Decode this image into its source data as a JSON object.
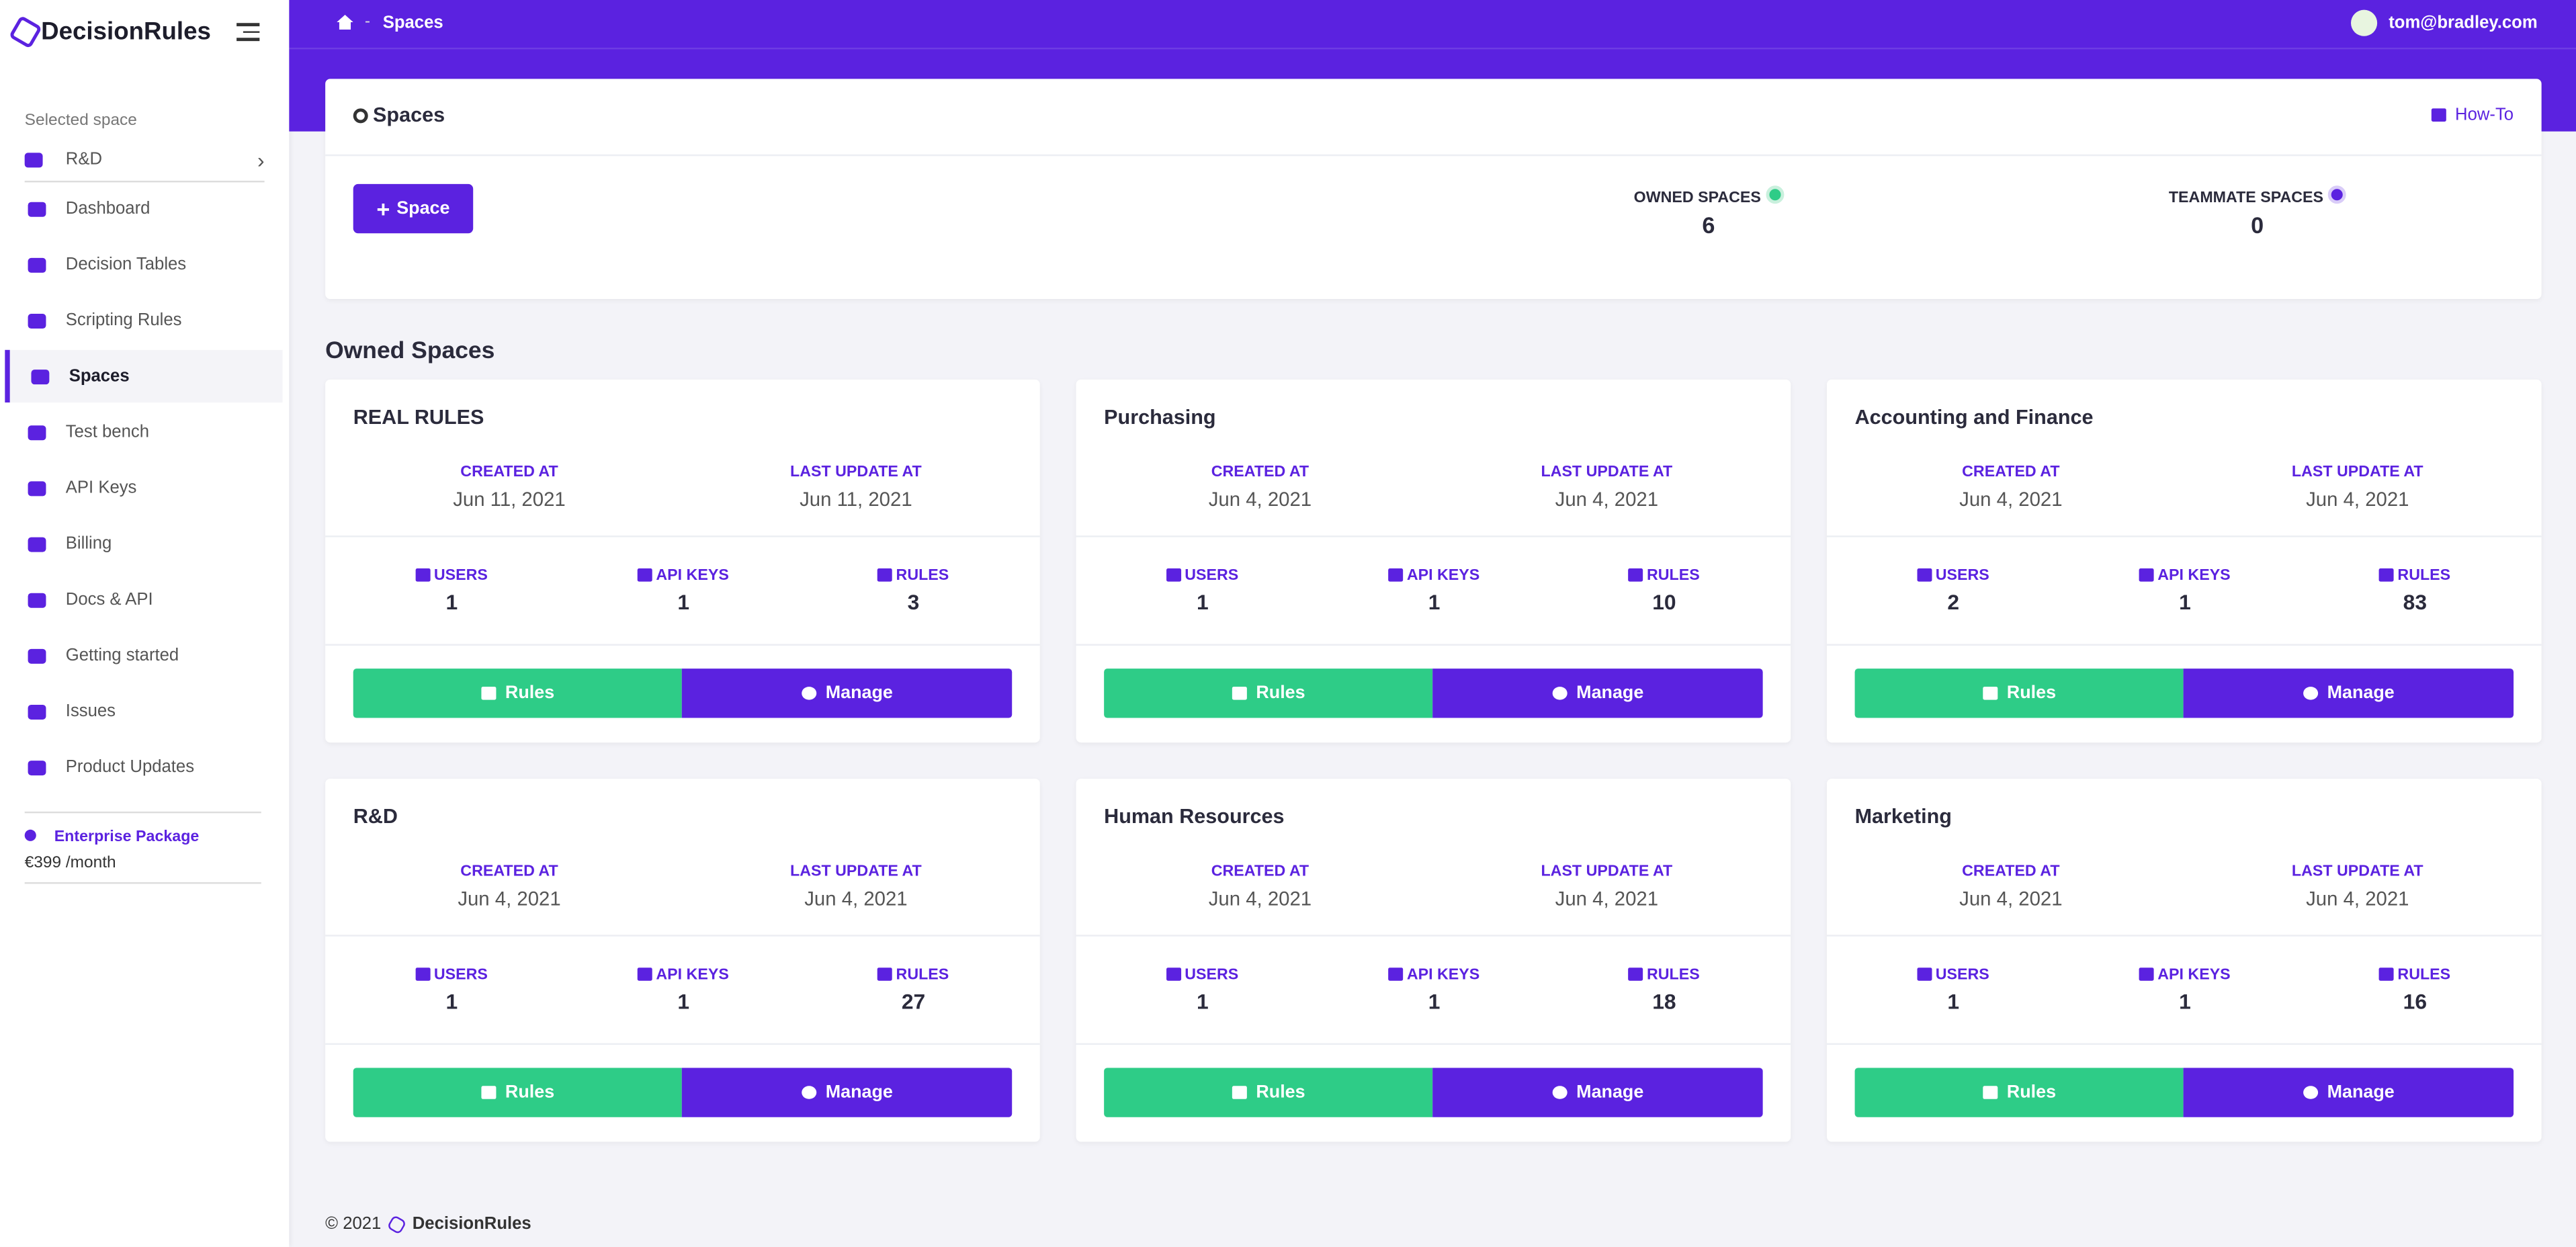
{
  "sidebar": {
    "brand": "DecisionRules",
    "selected_space_label": "Selected space",
    "selected_space": "R&D",
    "menu": [
      {
        "label": "Dashboard",
        "active": false
      },
      {
        "label": "Decision Tables",
        "active": false
      },
      {
        "label": "Scripting Rules",
        "active": false
      },
      {
        "label": "Spaces",
        "active": true
      },
      {
        "label": "Test bench",
        "active": false
      },
      {
        "label": "API Keys",
        "active": false
      },
      {
        "label": "Billing",
        "active": false
      },
      {
        "label": "Docs & API",
        "active": false
      },
      {
        "label": "Getting started",
        "active": false
      },
      {
        "label": "Issues",
        "active": false
      },
      {
        "label": "Product Updates",
        "active": false
      }
    ],
    "plan": {
      "name": "Enterprise Package",
      "price": "€399 /month"
    }
  },
  "header": {
    "breadcrumb": "Spaces",
    "user": "tom@bradley.com"
  },
  "summary": {
    "title": "Spaces",
    "how_to": "How-To",
    "add_button": "Space",
    "owned_label": "OWNED SPACES",
    "owned": 6,
    "teammate_label": "TEAMMATE SPACES",
    "teammate": 0
  },
  "section_title": "Owned Spaces",
  "card_labels": {
    "created": "CREATED AT",
    "updated": "LAST UPDATE AT",
    "users": "USERS",
    "api_keys": "API KEYS",
    "rules": "RULES",
    "rules_button": "Rules",
    "manage_button": "Manage"
  },
  "spaces": [
    {
      "name": "REAL RULES",
      "created": "Jun 11, 2021",
      "updated": "Jun 11, 2021",
      "users": 1,
      "api_keys": 1,
      "rules": 3
    },
    {
      "name": "Purchasing",
      "created": "Jun 4, 2021",
      "updated": "Jun 4, 2021",
      "users": 1,
      "api_keys": 1,
      "rules": 10
    },
    {
      "name": "Accounting and Finance",
      "created": "Jun 4, 2021",
      "updated": "Jun 4, 2021",
      "users": 2,
      "api_keys": 1,
      "rules": 83
    },
    {
      "name": "R&D",
      "created": "Jun 4, 2021",
      "updated": "Jun 4, 2021",
      "users": 1,
      "api_keys": 1,
      "rules": 27
    },
    {
      "name": "Human Resources",
      "created": "Jun 4, 2021",
      "updated": "Jun 4, 2021",
      "users": 1,
      "api_keys": 1,
      "rules": 18
    },
    {
      "name": "Marketing",
      "created": "Jun 4, 2021",
      "updated": "Jun 4, 2021",
      "users": 1,
      "api_keys": 1,
      "rules": 16
    }
  ],
  "footer": {
    "copyright": "© 2021",
    "brand": "DecisionRules"
  }
}
